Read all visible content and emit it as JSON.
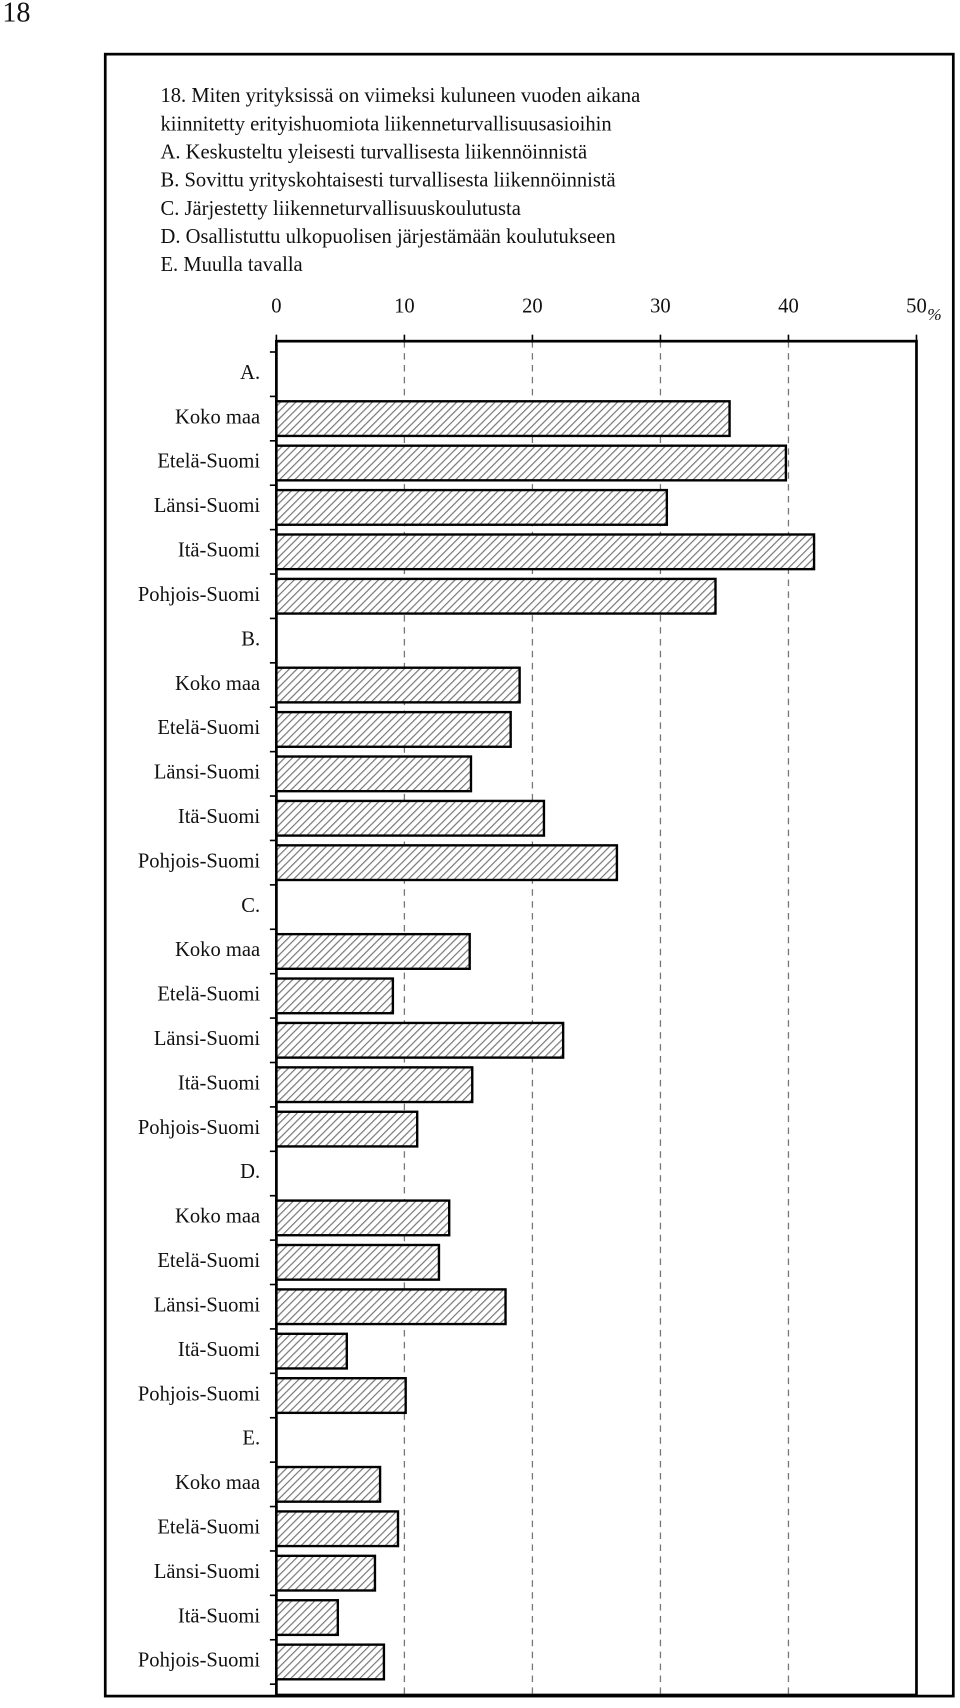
{
  "page_number": "18",
  "chart_data": {
    "type": "barh",
    "title_lines": [
      "18. Miten yrityksissä on viimeksi kuluneen vuoden aikana",
      "kiinnitetty erityishuomiota liikenneturvallisuusasioihin",
      "A. Keskusteltu yleisesti turvallisesta liikennöinnistä",
      "B. Sovittu yrityskohtaisesti turvallisesta liikennöinnistä",
      "C. Järjestetty liikenneturvallisuuskoulutusta",
      "D. Osallistuttu ulkopuolisen järjestämään koulutukseen",
      "E. Muulla tavalla"
    ],
    "categories": [
      "A.",
      "Koko maa",
      "Etelä-Suomi",
      "Länsi-Suomi",
      "Itä-Suomi",
      "Pohjois-Suomi",
      "B.",
      "Koko maa",
      "Etelä-Suomi",
      "Länsi-Suomi",
      "Itä-Suomi",
      "Pohjois-Suomi",
      "C.",
      "Koko maa",
      "Etelä-Suomi",
      "Länsi-Suomi",
      "Itä-Suomi",
      "Pohjois-Suomi",
      "D.",
      "Koko maa",
      "Etelä-Suomi",
      "Länsi-Suomi",
      "Itä-Suomi",
      "Pohjois-Suomi",
      "E.",
      "Koko maa",
      "Etelä-Suomi",
      "Länsi-Suomi",
      "Itä-Suomi",
      "Pohjois-Suomi"
    ],
    "values": [
      null,
      35.4,
      39.8,
      30.5,
      42,
      34.3,
      null,
      19,
      18.3,
      15.2,
      20.9,
      26.6,
      null,
      15.1,
      9.1,
      22.4,
      15.3,
      11,
      null,
      13.5,
      12.7,
      17.9,
      5.5,
      10.1,
      null,
      8.1,
      9.5,
      7.7,
      4.8,
      8.4
    ],
    "xlim": [
      0,
      50
    ],
    "xticks": [
      0,
      10,
      20,
      30,
      40,
      50
    ],
    "x_unit": "%",
    "grid": true,
    "color": "#999999"
  }
}
